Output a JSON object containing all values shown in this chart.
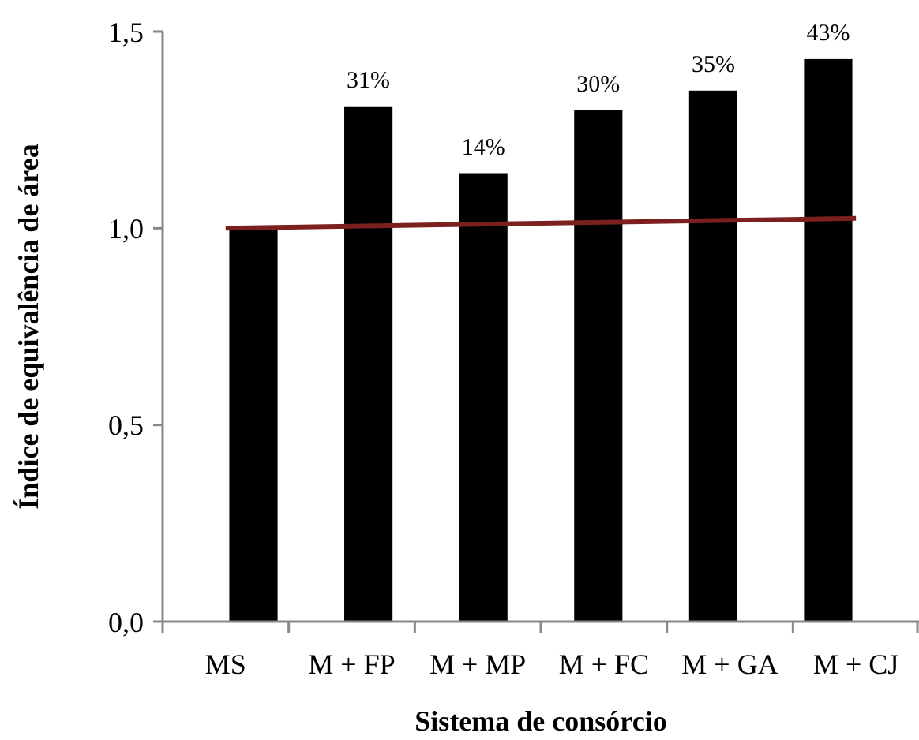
{
  "chart_data": {
    "type": "bar",
    "xlabel": "Sistema de consórcio",
    "ylabel": "Índice de equivalência de área",
    "categories": [
      "MS",
      "M + FP",
      "M + MP",
      "M + FC",
      "M + GA",
      "M + CJ"
    ],
    "series": [
      {
        "color": "#000000",
        "values": [
          1.0,
          1.31,
          1.14,
          1.3,
          1.35,
          1.43
        ]
      },
      {
        "type": "line",
        "color": "#7b1f1f",
        "values": [
          1.0,
          1.005,
          1.01,
          1.015,
          1.02,
          1.025
        ],
        "marker": "none"
      }
    ],
    "annotations": [
      {
        "text": "31%",
        "x": "M + FP",
        "y": 1.31
      },
      {
        "text": "14%",
        "x": "M + MP",
        "y": 1.14
      },
      {
        "text": "30%",
        "x": "M + FC",
        "y": 1.3
      },
      {
        "text": "35%",
        "x": "M + GA",
        "y": 1.35
      },
      {
        "text": "43%",
        "x": "M + CJ",
        "y": 1.43
      }
    ],
    "ylim": [
      0,
      1.5
    ],
    "yticks": [
      {
        "value": 0,
        "label": "0,0"
      },
      {
        "value": 0.5,
        "label": "0,5"
      },
      {
        "value": 1,
        "label": "1,0"
      },
      {
        "value": 1.5,
        "label": "1,5"
      }
    ],
    "grid": false
  }
}
